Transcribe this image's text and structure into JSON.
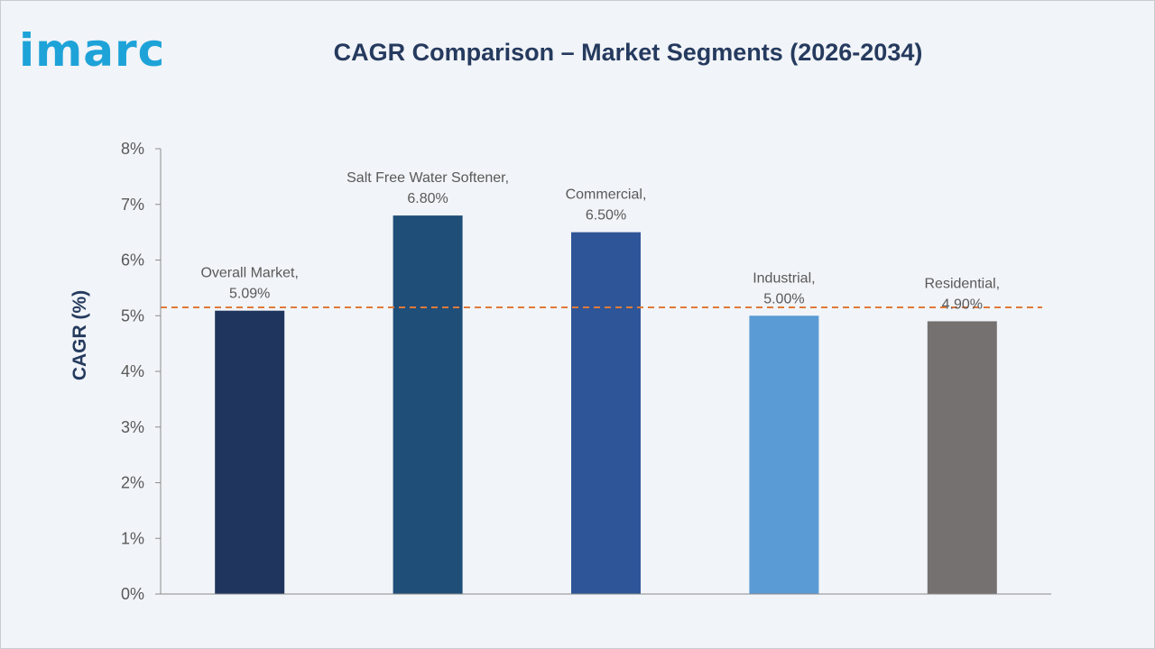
{
  "logo": {
    "text": "imarc"
  },
  "colors": {
    "logo": "#1ea3d8",
    "title": "#253a5e",
    "ytitle": "#253a5e",
    "axis": "#8c8c8c",
    "tick_text": "#595959",
    "label_text": "#595959",
    "reference_line": "#e07a3a",
    "background": "#f1f4f8"
  },
  "chart_data": {
    "type": "bar",
    "title": "CAGR Comparison – Market Segments (2026-2034)",
    "ylabel": "CAGR (%)",
    "xlabel": "",
    "ylim": [
      0,
      8
    ],
    "yticks": [
      "0%",
      "1%",
      "2%",
      "3%",
      "4%",
      "5%",
      "6%",
      "7%",
      "8%"
    ],
    "grid": false,
    "legend": "none",
    "categories": [
      "Overall Market",
      "Salt Free Water Softener",
      "Commercial",
      "Industrial",
      "Residential"
    ],
    "values": [
      5.09,
      6.8,
      6.5,
      5.0,
      4.9
    ],
    "data_labels": [
      [
        "Overall Market,",
        "5.09%"
      ],
      [
        "Salt Free Water Softener,",
        "6.80%"
      ],
      [
        "Commercial,",
        "6.50%"
      ],
      [
        "Industrial,",
        "5.00%"
      ],
      [
        "Residential,",
        "4.90%"
      ]
    ],
    "bar_colors": [
      "#1f355e",
      "#1f4e79",
      "#2e5597",
      "#5b9bd5",
      "#767171"
    ],
    "reference_line": {
      "value": 5.15,
      "style": "dashed"
    }
  }
}
